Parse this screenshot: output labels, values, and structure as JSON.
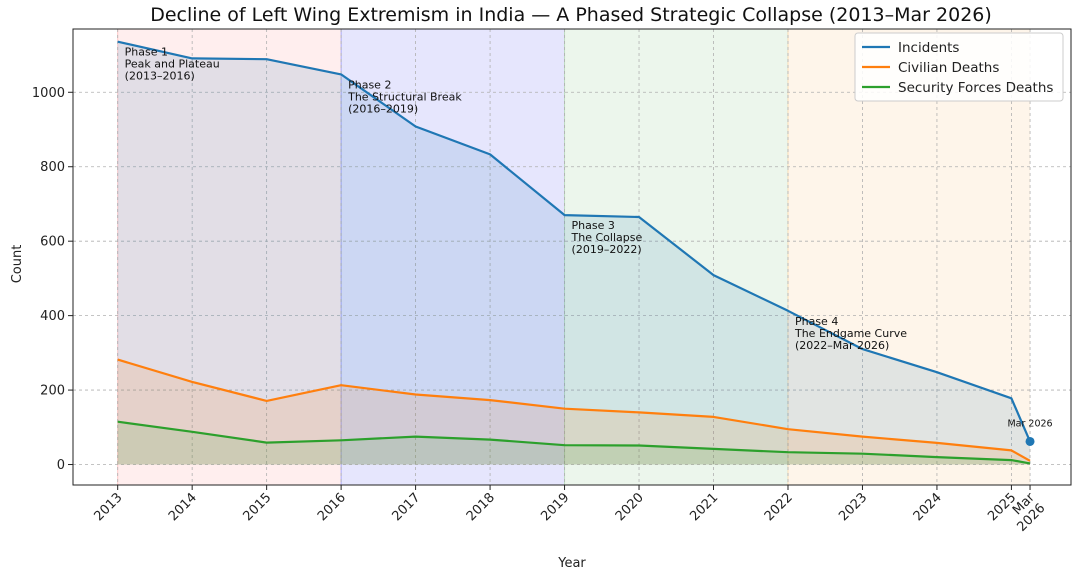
{
  "chart_data": {
    "type": "line",
    "title": "Decline of Left Wing Extremism in India — A Phased Strategic Collapse (2013–Mar 2026)",
    "xlabel": "Year",
    "ylabel": "Count",
    "ylim": [
      -55,
      1170
    ],
    "yticks": [
      0,
      200,
      400,
      600,
      800,
      1000
    ],
    "x": [
      2013,
      2014,
      2015,
      2016,
      2017,
      2018,
      2019,
      2020,
      2021,
      2022,
      2023,
      2024,
      2025,
      2025.25
    ],
    "xlim": [
      2012.4,
      2025.8
    ],
    "x_tick_labels": [
      "2013",
      "2014",
      "2015",
      "2016",
      "2017",
      "2018",
      "2019",
      "2020",
      "2021",
      "2022",
      "2023",
      "2024",
      "2025",
      "Mar 2026"
    ],
    "grid": true,
    "legend_position": "top-right",
    "series": [
      {
        "name": "Incidents",
        "color": "#1f77b4",
        "values": [
          1136,
          1091,
          1089,
          1048,
          908,
          833,
          670,
          665,
          509,
          413,
          310,
          248,
          178,
          62
        ]
      },
      {
        "name": "Civilian Deaths",
        "color": "#ff7f0e",
        "values": [
          282,
          222,
          171,
          213,
          188,
          173,
          150,
          140,
          128,
          95,
          75,
          58,
          38,
          10
        ]
      },
      {
        "name": "Security Forces Deaths",
        "color": "#2ca02c",
        "values": [
          115,
          88,
          59,
          65,
          75,
          67,
          52,
          51,
          42,
          33,
          29,
          20,
          12,
          3
        ]
      }
    ],
    "phases": [
      {
        "name": "Phase 1",
        "subtitle": "Peak and Plateau",
        "range": "(2013–2016)",
        "x_start": 2013,
        "x_end": 2016,
        "color": "#ffb3b3"
      },
      {
        "name": "Phase 2",
        "subtitle": "The Structural Break",
        "range": "(2016–2019)",
        "x_start": 2016,
        "x_end": 2019,
        "color": "#8f8ff5"
      },
      {
        "name": "Phase 3",
        "subtitle": "The Collapse",
        "range": "(2019–2022)",
        "x_start": 2019,
        "x_end": 2022,
        "color": "#a8d4a8"
      },
      {
        "name": "Phase 4",
        "subtitle": "The Endgame Curve",
        "range": "(2022–Mar 2026)",
        "x_start": 2022,
        "x_end": 2025.25,
        "color": "#fbd3a0"
      }
    ],
    "annotations": [
      {
        "text": "Mar 2026",
        "x": 2025.25,
        "y": 62
      }
    ]
  }
}
